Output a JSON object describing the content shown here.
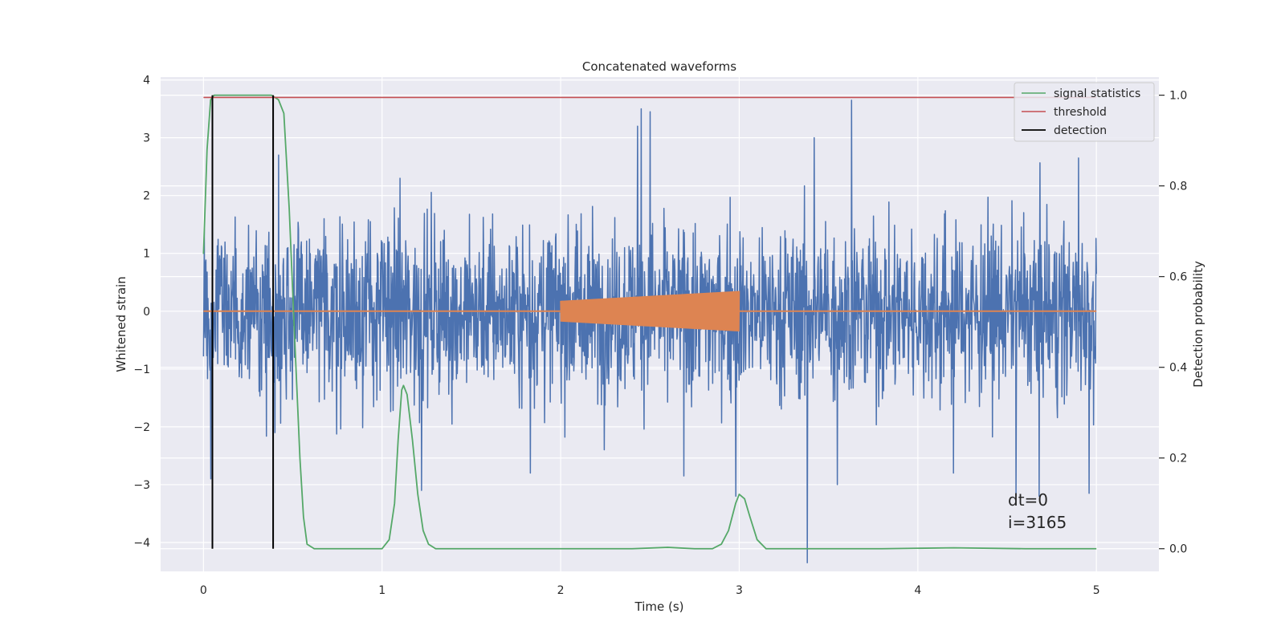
{
  "chart_data": {
    "type": "line",
    "title": "Concatenated waveforms",
    "xlabel": "Time (s)",
    "ylabel": "Whitened strain",
    "y2label": "Detection probability",
    "xlim": [
      -0.24,
      5.35
    ],
    "ylim": [
      -4.5,
      4.05
    ],
    "y2lim": [
      -0.05,
      1.04
    ],
    "x_ticks": [
      "0",
      "1",
      "2",
      "3",
      "4",
      "5"
    ],
    "y_ticks": [
      "4",
      "3",
      "2",
      "1",
      "0",
      "−1",
      "−2",
      "−3",
      "−4"
    ],
    "y2_ticks": [
      "1.0",
      "0.8",
      "0.6",
      "0.4",
      "0.2",
      "0.0"
    ],
    "grid": true,
    "legend_position": "top-right",
    "legend": [
      "signal statistics",
      "threshold",
      "detection"
    ],
    "colors": {
      "noise": "#4c72b0",
      "injection": "#dd8452",
      "signal_statistics": "#55a868",
      "threshold": "#c44e52",
      "detection": "#000000",
      "plot_bg": "#eaeaf2",
      "grid": "#ffffff"
    },
    "noise_series": {
      "axis": "left",
      "x_range": [
        0,
        5
      ],
      "typical_range": [
        -1.2,
        1.2
      ],
      "max": 3.65,
      "min": -4.35,
      "notable_spikes": [
        {
          "x": 0.04,
          "y": -2.9
        },
        {
          "x": 0.42,
          "y": 2.7
        },
        {
          "x": 0.4,
          "y": -2.1
        },
        {
          "x": 1.1,
          "y": 2.3
        },
        {
          "x": 1.22,
          "y": -3.1
        },
        {
          "x": 1.83,
          "y": -2.8
        },
        {
          "x": 2.43,
          "y": 3.2
        },
        {
          "x": 2.45,
          "y": 3.5
        },
        {
          "x": 2.5,
          "y": 3.45
        },
        {
          "x": 2.69,
          "y": -2.85
        },
        {
          "x": 2.98,
          "y": -3.2
        },
        {
          "x": 3.38,
          "y": -4.35
        },
        {
          "x": 3.42,
          "y": 3.0
        },
        {
          "x": 3.63,
          "y": 3.65
        },
        {
          "x": 3.55,
          "y": -3.0
        },
        {
          "x": 4.2,
          "y": -2.8
        },
        {
          "x": 4.55,
          "y": -3.2
        },
        {
          "x": 4.68,
          "y": -3.2
        },
        {
          "x": 4.9,
          "y": 2.65
        },
        {
          "x": 4.96,
          "y": -3.15
        }
      ]
    },
    "injection_series": {
      "axis": "left",
      "baseline": 0,
      "chirp": {
        "x_start": 2.0,
        "x_end": 3.0,
        "amplitude_start": 0.18,
        "amplitude_end": 0.35
      }
    },
    "signal_statistics": {
      "axis": "right",
      "x": [
        0.0,
        0.02,
        0.04,
        0.06,
        0.08,
        0.12,
        0.2,
        0.3,
        0.38,
        0.42,
        0.45,
        0.48,
        0.51,
        0.54,
        0.56,
        0.58,
        0.62,
        0.8,
        1.0,
        1.04,
        1.07,
        1.09,
        1.11,
        1.12,
        1.14,
        1.17,
        1.2,
        1.23,
        1.26,
        1.3,
        1.5,
        2.0,
        2.4,
        2.6,
        2.75,
        2.85,
        2.9,
        2.94,
        2.98,
        3.0,
        3.03,
        3.06,
        3.1,
        3.15,
        3.3,
        3.8,
        4.2,
        4.6,
        5.0
      ],
      "y": [
        0.65,
        0.88,
        0.99,
        1.0,
        1.0,
        1.0,
        1.0,
        1.0,
        1.0,
        0.99,
        0.96,
        0.75,
        0.47,
        0.2,
        0.07,
        0.01,
        0.0,
        0.0,
        0.0,
        0.02,
        0.1,
        0.24,
        0.35,
        0.36,
        0.34,
        0.24,
        0.12,
        0.04,
        0.01,
        0.0,
        0.0,
        0.0,
        0.0,
        0.003,
        0.0,
        0.0,
        0.01,
        0.04,
        0.1,
        0.12,
        0.11,
        0.07,
        0.02,
        0.0,
        0.0,
        0.0,
        0.002,
        0.0,
        0.0
      ]
    },
    "threshold": {
      "axis": "right",
      "value": 0.995,
      "x_range": [
        0,
        5
      ]
    },
    "detections": {
      "axis": "right",
      "x": [
        0.05,
        0.39
      ],
      "y_range": [
        0.0,
        1.0
      ]
    },
    "annotations": [
      "dt=0",
      "i=3165"
    ]
  }
}
